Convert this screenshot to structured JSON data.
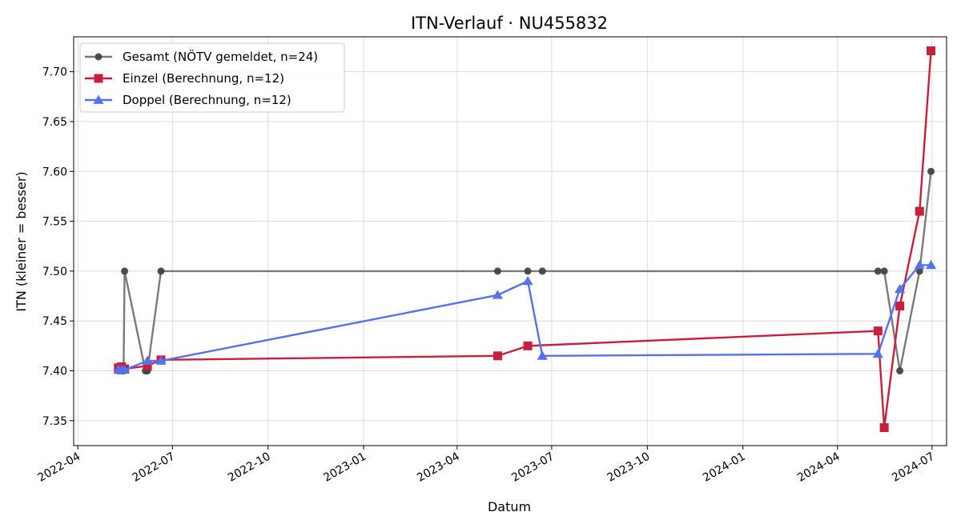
{
  "chart_data": {
    "type": "line",
    "title": "ITN-Verlauf · NU455832",
    "xlabel": "Datum",
    "ylabel": "ITN  (kleiner = besser)",
    "x_ticks": [
      "2022-04",
      "2022-07",
      "2022-10",
      "2023-01",
      "2023-04",
      "2023-07",
      "2023-10",
      "2024-01",
      "2024-04",
      "2024-07"
    ],
    "y_ticks": [
      "7.35",
      "7.40",
      "7.45",
      "7.50",
      "7.55",
      "7.60",
      "7.65",
      "7.70"
    ],
    "ylim": [
      7.325,
      7.735
    ],
    "xlim": [
      "2022-03-28",
      "2024-07-15"
    ],
    "grid": true,
    "legend_position": "top-left",
    "series": [
      {
        "name": "Gesamt (NÖTV gemeldet, n=24)",
        "color": "#555555",
        "marker": "circle",
        "points": [
          {
            "x": "2022-05-10",
            "y": 7.4
          },
          {
            "x": "2022-05-13",
            "y": 7.4
          },
          {
            "x": "2022-05-15",
            "y": 7.4
          },
          {
            "x": "2022-05-16",
            "y": 7.5
          },
          {
            "x": "2022-06-05",
            "y": 7.4
          },
          {
            "x": "2022-06-07",
            "y": 7.4
          },
          {
            "x": "2022-06-20",
            "y": 7.5
          },
          {
            "x": "2023-05-10",
            "y": 7.5
          },
          {
            "x": "2023-06-08",
            "y": 7.5
          },
          {
            "x": "2023-06-22",
            "y": 7.5
          },
          {
            "x": "2024-05-10",
            "y": 7.5
          },
          {
            "x": "2024-05-16",
            "y": 7.5
          },
          {
            "x": "2024-05-31",
            "y": 7.4
          },
          {
            "x": "2024-06-19",
            "y": 7.5
          },
          {
            "x": "2024-06-30",
            "y": 7.6
          }
        ]
      },
      {
        "name": "Einzel (Berechnung, n=12)",
        "color": "#c81f3c",
        "marker": "square",
        "points": [
          {
            "x": "2022-05-10",
            "y": 7.403
          },
          {
            "x": "2022-05-13",
            "y": 7.404
          },
          {
            "x": "2022-05-16",
            "y": 7.402
          },
          {
            "x": "2022-06-07",
            "y": 7.405
          },
          {
            "x": "2022-06-20",
            "y": 7.411
          },
          {
            "x": "2023-05-10",
            "y": 7.415
          },
          {
            "x": "2023-06-08",
            "y": 7.425
          },
          {
            "x": "2024-05-10",
            "y": 7.44
          },
          {
            "x": "2024-05-16",
            "y": 7.343
          },
          {
            "x": "2024-05-31",
            "y": 7.465
          },
          {
            "x": "2024-06-19",
            "y": 7.56
          },
          {
            "x": "2024-06-30",
            "y": 7.721
          }
        ]
      },
      {
        "name": "Doppel (Berechnung, n=12)",
        "color": "#5571eb",
        "marker": "triangle",
        "points": [
          {
            "x": "2022-05-10",
            "y": 7.401
          },
          {
            "x": "2022-05-13",
            "y": 7.401
          },
          {
            "x": "2022-05-16",
            "y": 7.401
          },
          {
            "x": "2022-06-07",
            "y": 7.41
          },
          {
            "x": "2022-06-20",
            "y": 7.41
          },
          {
            "x": "2023-05-10",
            "y": 7.476
          },
          {
            "x": "2023-06-08",
            "y": 7.49
          },
          {
            "x": "2023-06-22",
            "y": 7.415
          },
          {
            "x": "2024-05-10",
            "y": 7.417
          },
          {
            "x": "2024-05-31",
            "y": 7.482
          },
          {
            "x": "2024-06-19",
            "y": 7.506
          },
          {
            "x": "2024-06-30",
            "y": 7.506
          }
        ]
      }
    ]
  }
}
